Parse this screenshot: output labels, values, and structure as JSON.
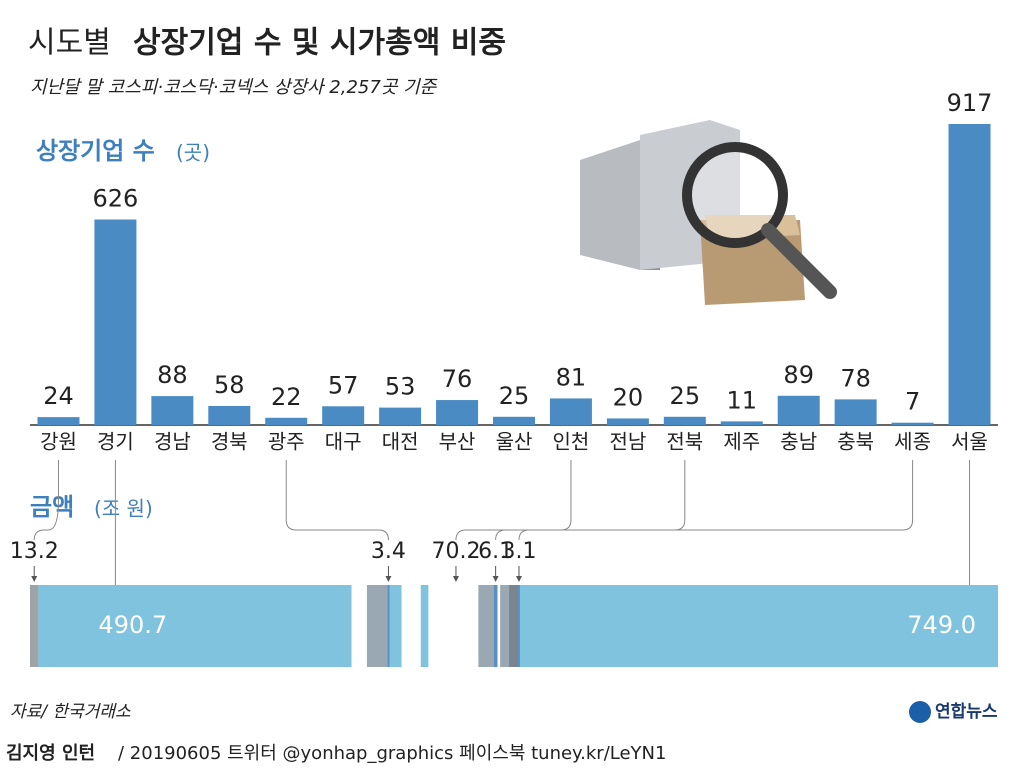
{
  "header": {
    "title_light": "시도별",
    "title_bold": "상장기업 수 및 시가총액 비중",
    "subtitle": "지난달 말 코스피·코스닥·코넥스 상장사 2,257곳 기준"
  },
  "chart_data": [
    {
      "type": "bar",
      "label": "상장기업 수",
      "unit": "(곳)",
      "categories": [
        "강원",
        "경기",
        "경남",
        "경북",
        "광주",
        "대구",
        "대전",
        "부산",
        "울산",
        "인천",
        "전남",
        "전북",
        "제주",
        "충남",
        "충북",
        "세종",
        "서울"
      ],
      "values": [
        24,
        626,
        88,
        58,
        22,
        57,
        53,
        76,
        25,
        81,
        20,
        25,
        11,
        89,
        78,
        7,
        917
      ],
      "ylim": [
        0,
        917
      ],
      "color": "#4a8bc4"
    },
    {
      "type": "stacked_bar_h",
      "label": "금액",
      "unit": "(조 원)",
      "values": [
        13.2,
        490.7,
        24,
        32,
        3.4,
        19,
        30,
        12,
        8,
        70.2,
        24,
        6.1,
        4,
        14,
        14,
        3.1,
        749.0
      ],
      "value_labels": [
        "13.2",
        "490.7",
        null,
        null,
        "3.4",
        null,
        null,
        null,
        null,
        "70.2",
        null,
        "6.1",
        null,
        null,
        null,
        "3.1",
        "749.0"
      ],
      "colors": [
        "#9ea3a8",
        "#7fc3de",
        "#ffffff",
        "#9aa8b3",
        "#5b8fc0",
        "#7fc3de",
        "#ffffff",
        "#7fc3de",
        "#ffffff",
        "#ffffff",
        "#9aa8b3",
        "#5b8fc0",
        "#ffffff",
        "#9aa8b3",
        "#7a8590",
        "#5b8fc0",
        "#7fc3de"
      ]
    }
  ],
  "footer": {
    "source": "자료/ 한국거래소",
    "author": "김지영 인턴",
    "credit": "/ 20190605 트위터 @yonhap_graphics  페이스북 tuney.kr/LeYN1",
    "logo": "연합뉴스"
  }
}
